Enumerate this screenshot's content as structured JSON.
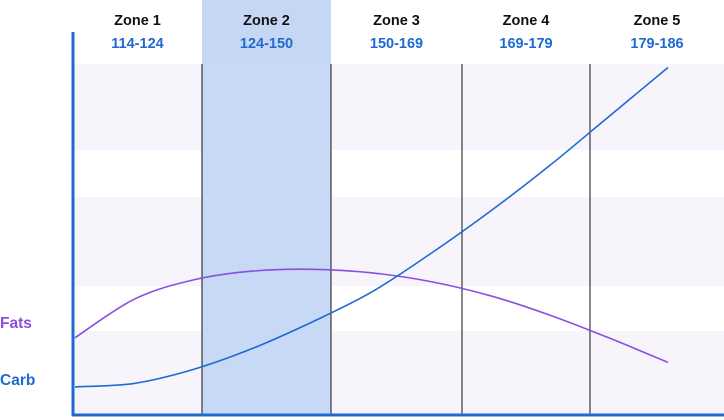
{
  "chart_data": {
    "type": "line",
    "title": "",
    "xlabel": "",
    "ylabel": "",
    "grid": false,
    "legend": "left",
    "zones": [
      {
        "name": "Zone 1",
        "range": "114-124",
        "highlighted": false
      },
      {
        "name": "Zone 2",
        "range": "124-150",
        "highlighted": true
      },
      {
        "name": "Zone 3",
        "range": "150-169",
        "highlighted": false
      },
      {
        "name": "Zone 4",
        "range": "169-179",
        "highlighted": false
      },
      {
        "name": "Zone 5",
        "range": "179-186",
        "highlighted": false
      }
    ],
    "x": [
      0,
      0.5,
      1,
      1.5,
      2,
      2.5,
      3,
      3.5,
      4,
      4.5,
      5
    ],
    "ylim": [
      0,
      100
    ],
    "series": [
      {
        "name": "Fats",
        "color": "#8a4fe0",
        "values": [
          22,
          33,
          38.5,
          41,
          41.5,
          40.5,
          38,
          34,
          28.5,
          22,
          15
        ]
      },
      {
        "name": "Carb",
        "color": "#1e6ad2",
        "values": [
          8,
          9,
          13,
          19,
          26.5,
          35,
          46,
          58,
          71,
          85,
          99
        ]
      }
    ],
    "colors": {
      "zone_range_text": "#1e6ad2",
      "highlight_fill": "#c5d7f4",
      "band_fill": "#f7f5fb",
      "axis": "#1e6ad2",
      "zone_divider": "#111111"
    }
  }
}
